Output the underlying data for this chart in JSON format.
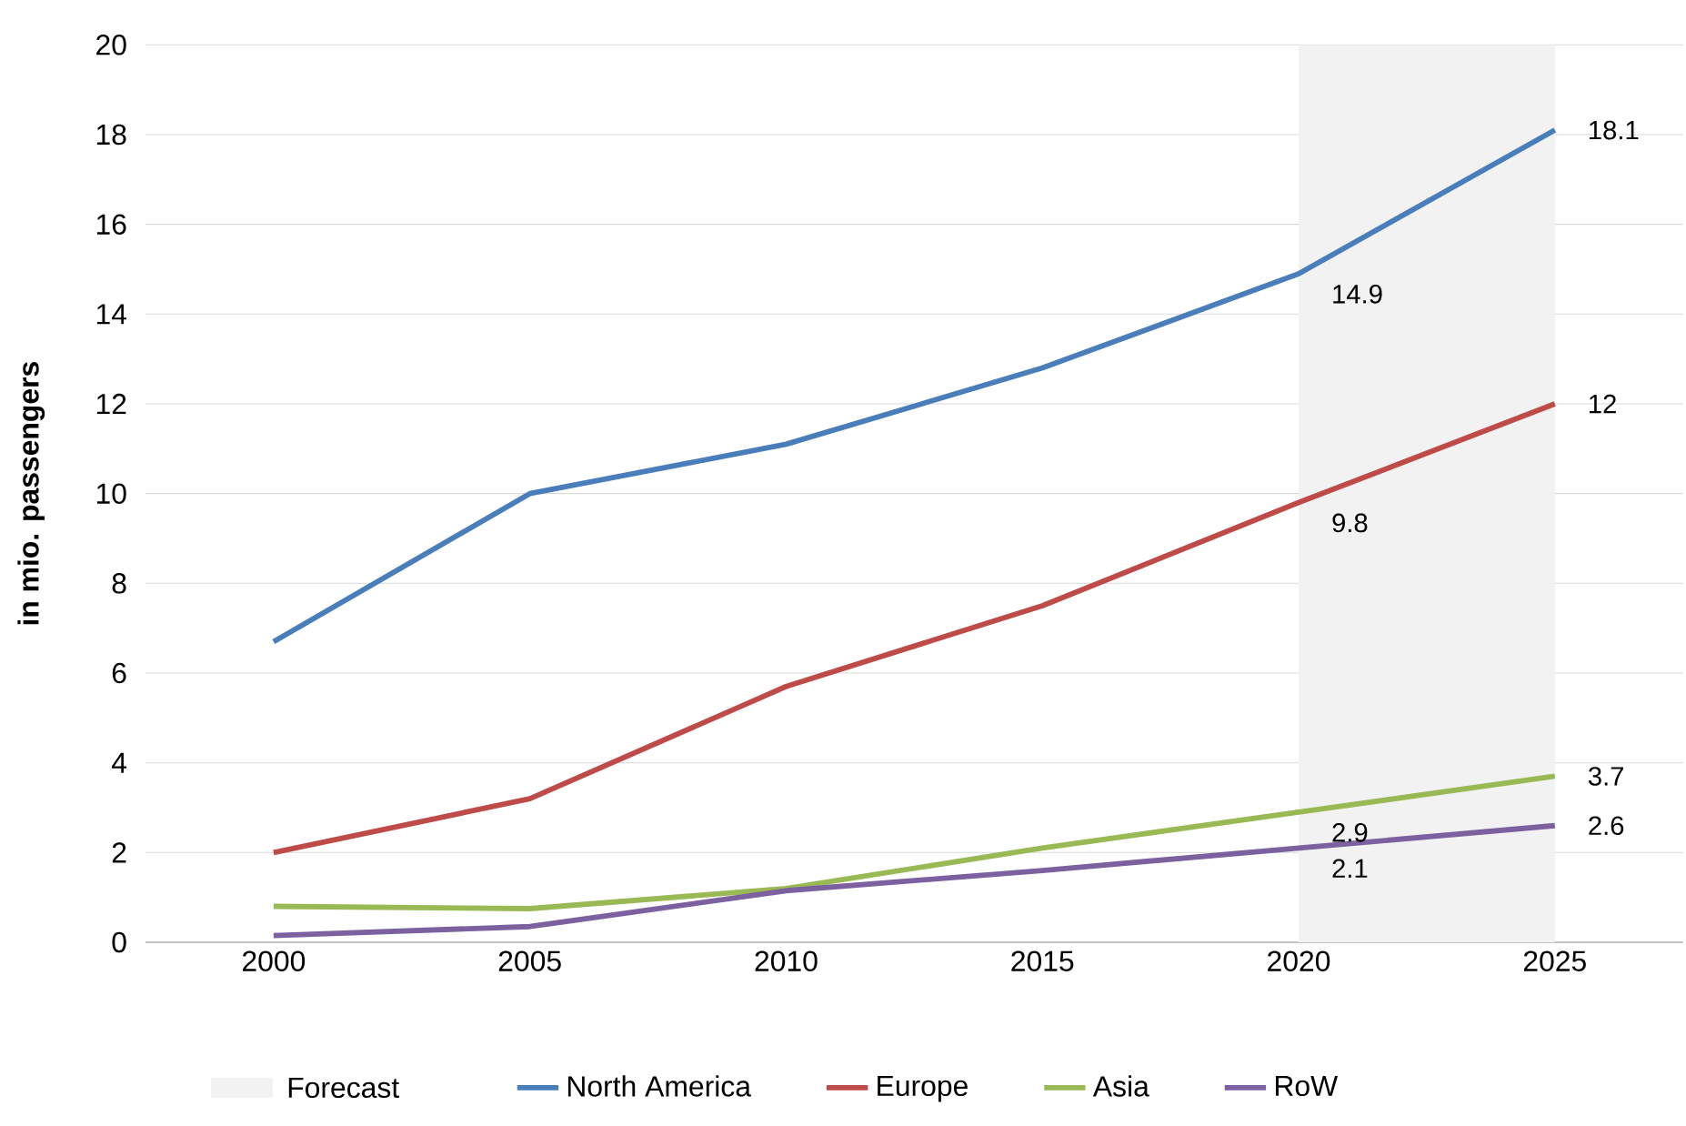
{
  "chart_data": {
    "type": "line",
    "ylabel": "in mio. passengers",
    "categories": [
      "2000",
      "2005",
      "2010",
      "2015",
      "2020",
      "2025"
    ],
    "series": [
      {
        "name": "North America",
        "color": "#4a7ebb",
        "values": [
          6.7,
          10.0,
          11.1,
          12.8,
          14.9,
          18.1
        ],
        "value_labels": [
          null,
          null,
          null,
          null,
          "14.9",
          "18.1"
        ]
      },
      {
        "name": "Europe",
        "color": "#be4b48",
        "values": [
          2.0,
          3.2,
          5.7,
          7.5,
          9.8,
          12
        ],
        "value_labels": [
          null,
          null,
          null,
          null,
          "9.8",
          "12"
        ]
      },
      {
        "name": "Asia",
        "color": "#98b954",
        "values": [
          0.8,
          0.75,
          1.2,
          2.1,
          2.9,
          3.7
        ],
        "value_labels": [
          null,
          null,
          null,
          null,
          "2.9",
          "3.7"
        ]
      },
      {
        "name": "RoW",
        "color": "#7d60a0",
        "values": [
          0.15,
          0.35,
          1.15,
          1.6,
          2.1,
          2.6
        ],
        "value_labels": [
          null,
          null,
          null,
          null,
          "2.1",
          "2.6"
        ]
      }
    ],
    "bands": [
      {
        "axis": "x",
        "from": "2020",
        "to": "2025",
        "label": "Forecast",
        "color": "#f2f2f2"
      }
    ],
    "ylim": [
      0,
      20
    ],
    "yticks": [
      0,
      2,
      4,
      6,
      8,
      10,
      12,
      14,
      16,
      18,
      20
    ],
    "grid": "y",
    "legend": "bottom",
    "marker": "none",
    "line_style": "solid"
  }
}
